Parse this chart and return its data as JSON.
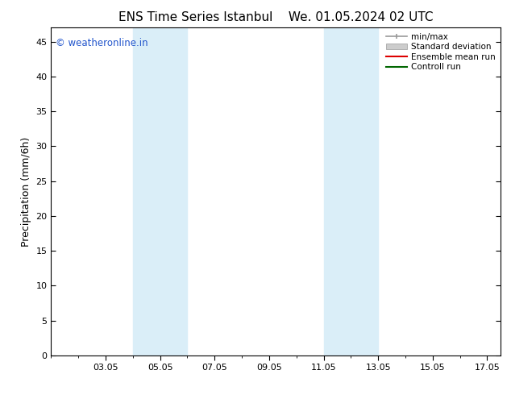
{
  "title1": "ENS Time Series Istanbul",
  "title2": "We. 01.05.2024 02 UTC",
  "ylabel": "Precipitation (mm/6h)",
  "ylim": [
    0,
    47
  ],
  "yticks": [
    0,
    5,
    10,
    15,
    20,
    25,
    30,
    35,
    40,
    45
  ],
  "xlim": [
    1.0,
    17.5
  ],
  "xtick_labels": [
    "03.05",
    "05.05",
    "07.05",
    "09.05",
    "11.05",
    "13.05",
    "15.05",
    "17.05"
  ],
  "xtick_positions": [
    3,
    5,
    7,
    9,
    11,
    13,
    15,
    17
  ],
  "shade_bands": [
    {
      "x_start": 4.0,
      "x_end": 6.0
    },
    {
      "x_start": 11.0,
      "x_end": 13.0
    }
  ],
  "shade_color": "#daeef8",
  "bg_color": "#ffffff",
  "watermark": "© weatheronline.in",
  "watermark_color": "#2255cc",
  "legend_labels": [
    "min/max",
    "Standard deviation",
    "Ensemble mean run",
    "Controll run"
  ],
  "title_fontsize": 11,
  "tick_fontsize": 8,
  "ylabel_fontsize": 9
}
